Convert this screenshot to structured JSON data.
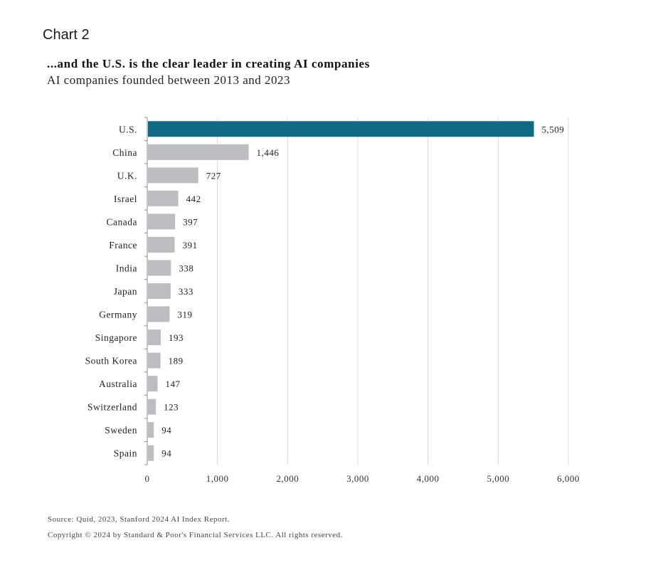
{
  "header": {
    "chart_label": "Chart 2",
    "title": "...and the U.S. is the clear leader in creating AI companies",
    "subtitle": "AI companies founded between 2013 and 2023"
  },
  "footer": {
    "source": "Source: Quid, 2023, Stanford 2024 AI Index Report.",
    "copyright": "Copyright © 2024 by Standard & Poor's Financial Services LLC. All rights reserved."
  },
  "colors": {
    "highlight": "#0f6b85",
    "bar": "#bcbdc0",
    "grid": "#d9d9d9",
    "axis": "#8c8c8c"
  },
  "chart_data": {
    "type": "bar",
    "orientation": "horizontal",
    "title": "...and the U.S. is the clear leader in creating AI companies",
    "subtitle": "AI companies founded between 2013 and 2023",
    "xlabel": "",
    "ylabel": "",
    "xlim": [
      0,
      6000
    ],
    "x_ticks": [
      0,
      1000,
      2000,
      3000,
      4000,
      5000,
      6000
    ],
    "x_tick_labels": [
      "0",
      "1,000",
      "2,000",
      "3,000",
      "4,000",
      "5,000",
      "6,000"
    ],
    "grid": "vertical",
    "highlight_category": "U.S.",
    "categories": [
      "U.S.",
      "China",
      "U.K.",
      "Israel",
      "Canada",
      "France",
      "India",
      "Japan",
      "Germany",
      "Singapore",
      "South Korea",
      "Australia",
      "Switzerland",
      "Sweden",
      "Spain"
    ],
    "values": [
      5509,
      1446,
      727,
      442,
      397,
      391,
      338,
      333,
      319,
      193,
      189,
      147,
      123,
      94,
      94
    ],
    "value_labels": [
      "5,509",
      "1,446",
      "727",
      "442",
      "397",
      "391",
      "338",
      "333",
      "319",
      "193",
      "189",
      "147",
      "123",
      "94",
      "94"
    ]
  }
}
